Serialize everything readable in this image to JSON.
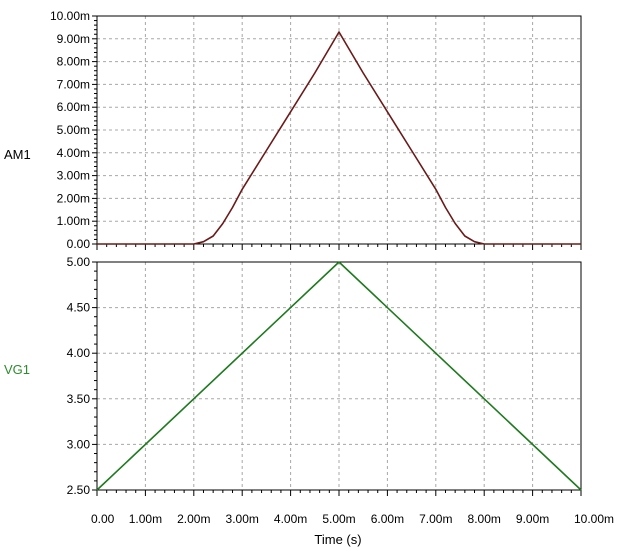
{
  "colors": {
    "am1_trace": "#6b1a1a",
    "vg1_trace": "#1e7a1e",
    "vg1_label": "#2e8b2e",
    "grid": "#a8a8a8",
    "axis": "#000000"
  },
  "chart_data": [
    {
      "type": "line",
      "title": "",
      "ylabel": "AM1",
      "xlabel": "",
      "xlim": [
        0,
        10
      ],
      "x_unit": "ms",
      "ylim": [
        0,
        10
      ],
      "y_unit": "mA",
      "grid": true,
      "yticks": [
        0,
        1,
        2,
        3,
        4,
        5,
        6,
        7,
        8,
        9,
        10
      ],
      "ytick_labels": [
        "0.00",
        "1.00m",
        "2.00m",
        "3.00m",
        "4.00m",
        "5.00m",
        "6.00m",
        "7.00m",
        "8.00m",
        "9.00m",
        "10.00m"
      ],
      "series": [
        {
          "name": "AM1",
          "x": [
            0,
            2.0,
            2.2,
            2.4,
            2.6,
            2.8,
            3.0,
            3.5,
            4.0,
            4.5,
            5.0,
            5.5,
            6.0,
            6.5,
            7.0,
            7.2,
            7.4,
            7.6,
            7.8,
            8.0,
            10
          ],
          "y": [
            0,
            0,
            0.1,
            0.35,
            0.9,
            1.6,
            2.4,
            4.1,
            5.8,
            7.5,
            9.3,
            7.5,
            5.8,
            4.1,
            2.4,
            1.6,
            0.9,
            0.35,
            0.1,
            0,
            0
          ]
        }
      ]
    },
    {
      "type": "line",
      "title": "",
      "ylabel": "VG1",
      "xlabel": "Time (s)",
      "xlim": [
        0,
        10
      ],
      "x_unit": "ms",
      "ylim": [
        2.5,
        5.0
      ],
      "y_unit": "V",
      "grid": true,
      "yticks": [
        2.5,
        3.0,
        3.5,
        4.0,
        4.5,
        5.0
      ],
      "ytick_labels": [
        "2.50",
        "3.00",
        "3.50",
        "4.00",
        "4.50",
        "5.00"
      ],
      "xticks": [
        0,
        1,
        2,
        3,
        4,
        5,
        6,
        7,
        8,
        9,
        10
      ],
      "xtick_labels": [
        "0.00",
        "1.00m",
        "2.00m",
        "3.00m",
        "4.00m",
        "5.00m",
        "6.00m",
        "7.00m",
        "8.00m",
        "9.00m",
        "10.00m"
      ],
      "series": [
        {
          "name": "VG1",
          "x": [
            0,
            5,
            10
          ],
          "y": [
            2.5,
            5.0,
            2.5
          ]
        }
      ]
    }
  ]
}
